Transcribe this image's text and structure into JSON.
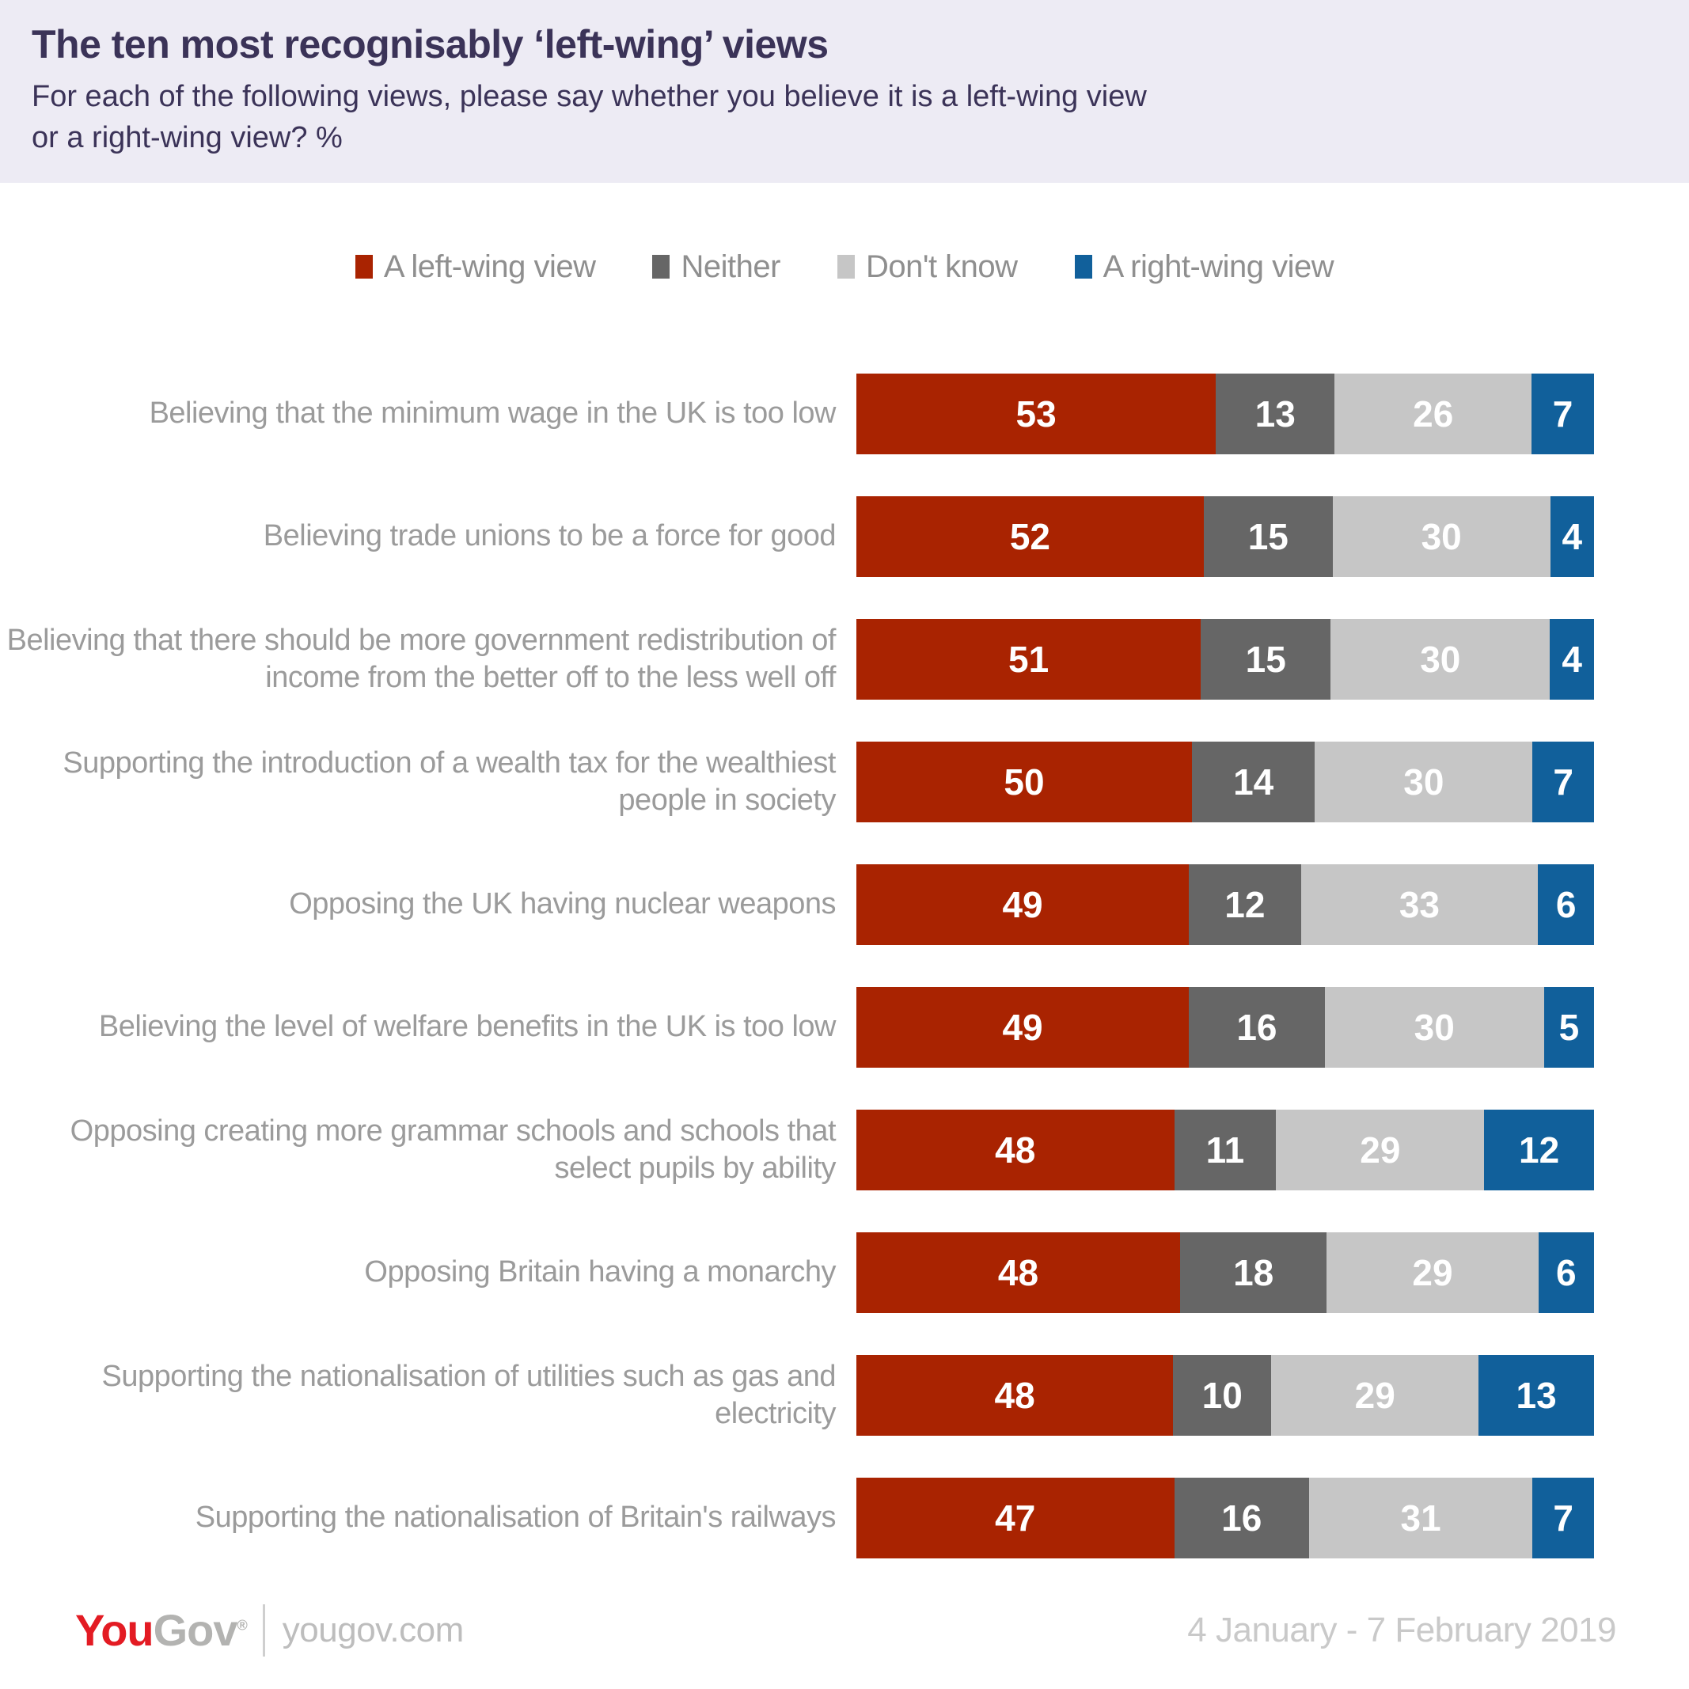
{
  "header": {
    "title": "The ten most recognisably ‘left-wing’ views",
    "subtitle_line1": "For each of the following views, please say whether you believe it is a left-wing view",
    "subtitle_line2": "or a right-wing view? %"
  },
  "chart_data": {
    "type": "bar",
    "orientation": "horizontal-stacked",
    "normalized_to_full_width": true,
    "value_unit": "%",
    "legend_position": "top",
    "categories": [
      "Believing that the minimum wage in the UK is too low",
      "Believing trade unions to be a force for good",
      "Believing that there should be more government redistribution of income from the better off to the less well off",
      "Supporting the introduction of a wealth tax for the wealthiest people in society",
      "Opposing the UK having nuclear weapons",
      "Believing the level of welfare benefits in the UK is too low",
      "Opposing creating more grammar schools and schools that select pupils by ability",
      "Opposing Britain having a monarchy",
      "Supporting the nationalisation of utilities such as gas and electricity",
      "Supporting the nationalisation of Britain's railways"
    ],
    "series": [
      {
        "name": "A left-wing view",
        "color": "#A92301",
        "values": [
          53,
          52,
          51,
          50,
          49,
          49,
          48,
          48,
          48,
          47
        ]
      },
      {
        "name": "Neither",
        "color": "#666666",
        "values": [
          13,
          15,
          15,
          14,
          12,
          16,
          11,
          18,
          10,
          16
        ]
      },
      {
        "name": "Don't know",
        "color": "#C6C6C6",
        "values": [
          26,
          30,
          30,
          30,
          33,
          30,
          29,
          29,
          29,
          31
        ]
      },
      {
        "name": "A right-wing view",
        "color": "#11609B",
        "values": [
          7,
          4,
          4,
          7,
          6,
          5,
          12,
          6,
          13,
          7
        ]
      }
    ]
  },
  "footer": {
    "logo_you": "You",
    "logo_gov": "Gov",
    "registered_mark": "®",
    "site": "yougov.com",
    "date_range": "4 January - 7 February 2019"
  },
  "colors": {
    "header_bg": "#EDEBF4",
    "title_text": "#3B3358",
    "label_text": "#9B9B9B",
    "legend_text": "#8F8F8F",
    "left_wing": "#A92301",
    "neither": "#666666",
    "dont_know": "#C6C6C6",
    "right_wing": "#11609B",
    "footer_red": "#E31B23",
    "footer_gray": "#B3B3B1",
    "date_text": "#C9C9C9"
  }
}
